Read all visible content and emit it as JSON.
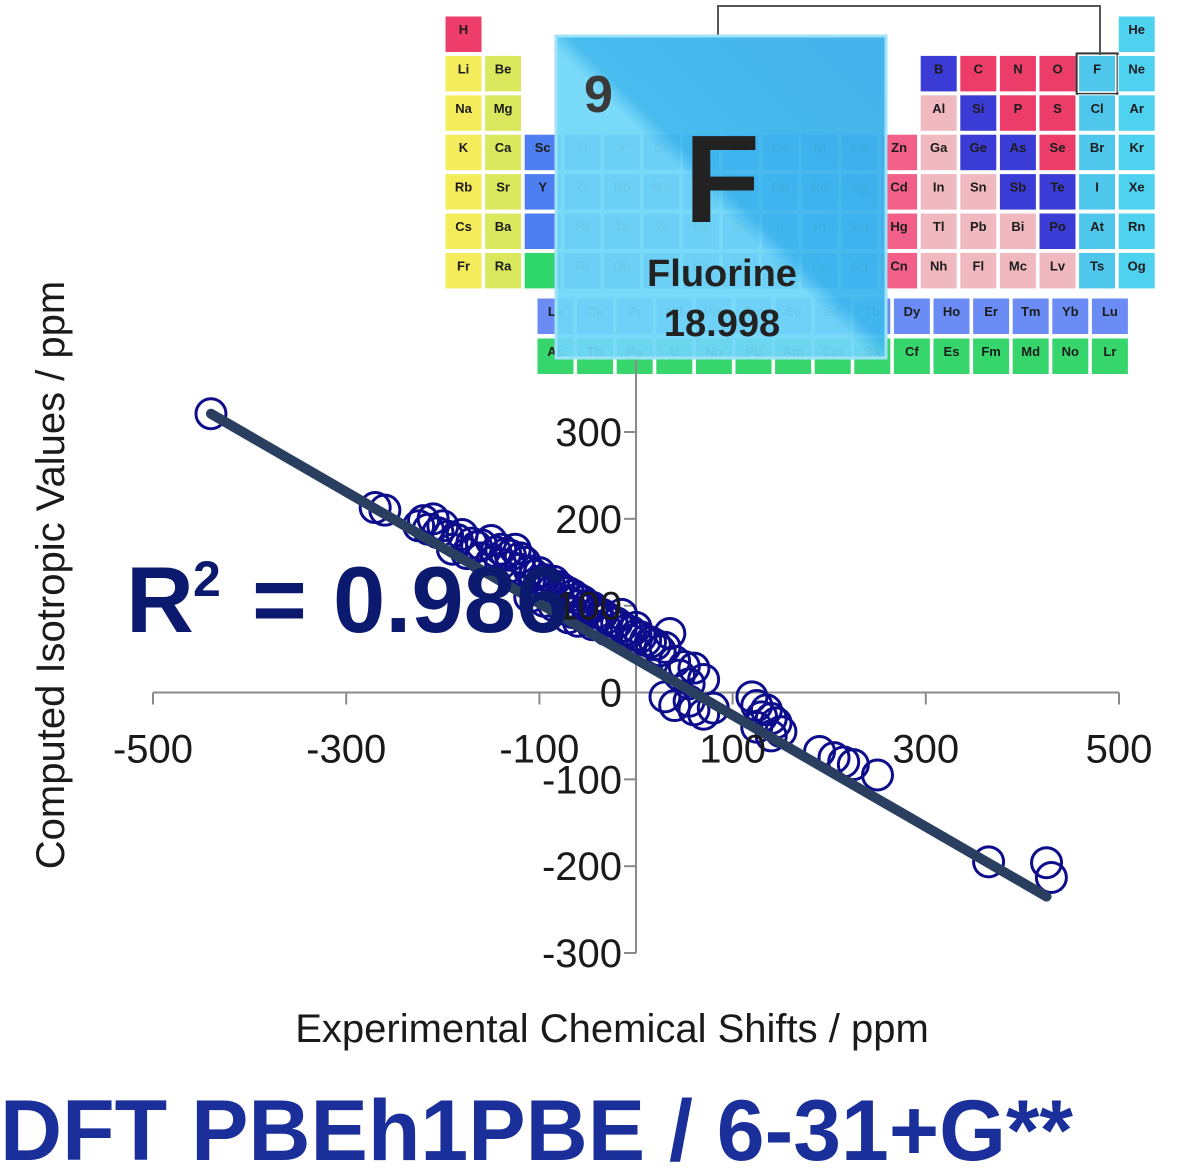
{
  "periodic_table": {
    "main": [
      [
        "H",
        "",
        "",
        "",
        "",
        "",
        "",
        "",
        "",
        "",
        "",
        "",
        "",
        "",
        "",
        "",
        "",
        "He"
      ],
      [
        "Li",
        "Be",
        "",
        "",
        "",
        "",
        "",
        "",
        "",
        "",
        "",
        "",
        "B",
        "C",
        "N",
        "O",
        "F",
        "Ne"
      ],
      [
        "Na",
        "Mg",
        "",
        "",
        "",
        "",
        "",
        "",
        "",
        "",
        "",
        "",
        "Al",
        "Si",
        "P",
        "S",
        "Cl",
        "Ar"
      ],
      [
        "K",
        "Ca",
        "Sc",
        "Ti",
        "V",
        "Cr",
        "Mn",
        "Fe",
        "Co",
        "Ni",
        "Cu",
        "Zn",
        "Ga",
        "Ge",
        "As",
        "Se",
        "Br",
        "Kr"
      ],
      [
        "Rb",
        "Sr",
        "Y",
        "Zr",
        "Nb",
        "Mo",
        "Tc",
        "Ru",
        "Rh",
        "Pd",
        "Ag",
        "Cd",
        "In",
        "Sn",
        "Sb",
        "Te",
        "I",
        "Xe"
      ],
      [
        "Cs",
        "Ba",
        "",
        "Hf",
        "Ta",
        "W",
        "Re",
        "Os",
        "Ir",
        "Pt",
        "Au",
        "Hg",
        "Tl",
        "Pb",
        "Bi",
        "Po",
        "At",
        "Rn"
      ],
      [
        "Fr",
        "Ra",
        "",
        "Rf",
        "Db",
        "Sg",
        "Bh",
        "Hs",
        "Mt",
        "Ds",
        "Rg",
        "Cn",
        "Nh",
        "Fl",
        "Mc",
        "Lv",
        "Ts",
        "Og"
      ]
    ],
    "lanthanides": [
      "La",
      "Ce",
      "Pr",
      "Nd",
      "Pm",
      "Sm",
      "Eu",
      "Gd",
      "Tb",
      "Dy",
      "Ho",
      "Er",
      "Tm",
      "Yb",
      "Lu"
    ],
    "actinides": [
      "Ac",
      "Th",
      "Pa",
      "U",
      "Np",
      "Pu",
      "Am",
      "Cm",
      "Bk",
      "Cf",
      "Es",
      "Fm",
      "Md",
      "No",
      "Lr"
    ],
    "highlighted": "F"
  },
  "element_card": {
    "number": "9",
    "symbol": "F",
    "name": "Fluorine",
    "mass": "18.998"
  },
  "chart_data": {
    "type": "scatter",
    "xlabel": "Experimental Chemical Shifts / ppm",
    "ylabel": "Computed Isotropic Values / ppm",
    "xlim": [
      -500,
      500
    ],
    "ylim": [
      -300,
      300
    ],
    "x_ticks": [
      -500,
      -300,
      -100,
      100,
      300,
      500
    ],
    "y_ticks": [
      300,
      200,
      100,
      0,
      -100,
      -200,
      -300
    ],
    "fit_line": {
      "x": [
        -440,
        425
      ],
      "y": [
        321,
        -235
      ]
    },
    "r_squared_label": "R",
    "r_squared_sup": "2",
    "r_squared_value": "= 0.986",
    "series_color": "#0d0d8c",
    "line_color": "#2a3f5f",
    "points": [
      [
        -440,
        321
      ],
      [
        -270,
        213
      ],
      [
        -260,
        210
      ],
      [
        -220,
        198
      ],
      [
        -210,
        200
      ],
      [
        -200,
        192
      ],
      [
        -225,
        192
      ],
      [
        -215,
        188
      ],
      [
        -205,
        184
      ],
      [
        -195,
        180
      ],
      [
        -185,
        176
      ],
      [
        -180,
        182
      ],
      [
        -170,
        172
      ],
      [
        -165,
        168
      ],
      [
        -160,
        170
      ],
      [
        -150,
        175
      ],
      [
        -145,
        162
      ],
      [
        -140,
        165
      ],
      [
        -135,
        160
      ],
      [
        -130,
        158
      ],
      [
        -125,
        165
      ],
      [
        -120,
        155
      ],
      [
        -190,
        165
      ],
      [
        -175,
        160
      ],
      [
        -160,
        155
      ],
      [
        -150,
        150
      ],
      [
        -140,
        148
      ],
      [
        -130,
        145
      ],
      [
        -120,
        142
      ],
      [
        -115,
        150
      ],
      [
        -110,
        140
      ],
      [
        -105,
        135
      ],
      [
        -100,
        138
      ],
      [
        -95,
        130
      ],
      [
        -90,
        125
      ],
      [
        -85,
        128
      ],
      [
        -80,
        122
      ],
      [
        -75,
        118
      ],
      [
        -70,
        115
      ],
      [
        -65,
        112
      ],
      [
        -60,
        108
      ],
      [
        -55,
        105
      ],
      [
        -50,
        100
      ],
      [
        -45,
        98
      ],
      [
        -40,
        92
      ],
      [
        -35,
        90
      ],
      [
        -30,
        86
      ],
      [
        -25,
        82
      ],
      [
        -20,
        80
      ],
      [
        -15,
        76
      ],
      [
        -10,
        72
      ],
      [
        -5,
        70
      ],
      [
        0,
        66
      ],
      [
        5,
        64
      ],
      [
        10,
        60
      ],
      [
        15,
        58
      ],
      [
        20,
        55
      ],
      [
        30,
        52
      ],
      [
        -100,
        120
      ],
      [
        -90,
        115
      ],
      [
        -80,
        108
      ],
      [
        -70,
        104
      ],
      [
        -60,
        100
      ],
      [
        -50,
        95
      ],
      [
        -40,
        86
      ],
      [
        -110,
        110
      ],
      [
        -95,
        105
      ],
      [
        -85,
        100
      ],
      [
        -75,
        96
      ],
      [
        -65,
        92
      ],
      [
        -55,
        88
      ],
      [
        -70,
        86
      ],
      [
        -60,
        82
      ],
      [
        -45,
        78
      ],
      [
        -30,
        72
      ],
      [
        0,
        75
      ],
      [
        -15,
        90
      ],
      [
        -5,
        60
      ],
      [
        35,
        68
      ],
      [
        25,
        48
      ],
      [
        40,
        36
      ],
      [
        50,
        30
      ],
      [
        60,
        28
      ],
      [
        45,
        20
      ],
      [
        55,
        10
      ],
      [
        70,
        15
      ],
      [
        30,
        -5
      ],
      [
        40,
        -15
      ],
      [
        55,
        -10
      ],
      [
        60,
        -20
      ],
      [
        70,
        -25
      ],
      [
        80,
        -18
      ],
      [
        120,
        -5
      ],
      [
        125,
        -15
      ],
      [
        135,
        -20
      ],
      [
        140,
        -30
      ],
      [
        130,
        -28
      ],
      [
        145,
        -35
      ],
      [
        150,
        -45
      ],
      [
        125,
        -40
      ],
      [
        140,
        -50
      ],
      [
        190,
        -68
      ],
      [
        205,
        -75
      ],
      [
        215,
        -80
      ],
      [
        225,
        -83
      ],
      [
        250,
        -95
      ],
      [
        365,
        -195
      ],
      [
        425,
        -196
      ],
      [
        430,
        -213
      ]
    ]
  },
  "footer": {
    "method": "DFT PBEh1PBE / 6-31+G**"
  }
}
